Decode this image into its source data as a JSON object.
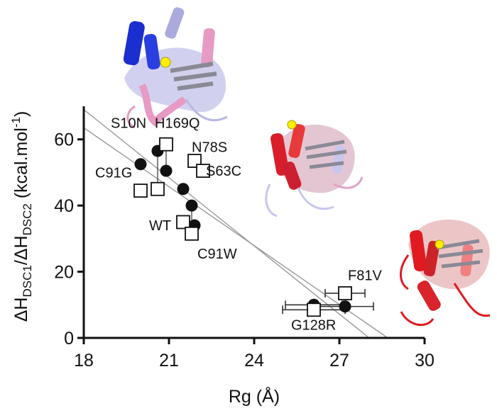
{
  "chart_data": {
    "type": "scatter",
    "xlabel": "Rg (Å)",
    "ylabel": {
      "prefix": "ΔH",
      "sub1": "DSC1",
      "mid": "/ΔH",
      "sub2": "DSC2",
      "unit": " (kcal.mol",
      "sup": "-1",
      "close": ")"
    },
    "xlim": [
      18,
      30
    ],
    "ylim": [
      0,
      70
    ],
    "xticks": [
      18,
      21,
      24,
      27,
      30
    ],
    "yticks": [
      0,
      20,
      40,
      60
    ],
    "series": [
      {
        "marker": "filled-circle",
        "points": [
          {
            "x": 20.0,
            "y": 52.5
          },
          {
            "x": 20.6,
            "y": 56.5
          },
          {
            "x": 20.9,
            "y": 50.5
          },
          {
            "x": 21.5,
            "y": 45.0
          },
          {
            "x": 21.8,
            "y": 40.0
          },
          {
            "x": 21.9,
            "y": 34.0
          },
          {
            "x": 26.1,
            "y": 10.0,
            "xerr": 1.0
          },
          {
            "x": 27.2,
            "y": 9.5,
            "xerr": 1.0
          }
        ]
      },
      {
        "marker": "open-square",
        "points": [
          {
            "x": 20.0,
            "y": 44.5
          },
          {
            "x": 20.6,
            "y": 45.0
          },
          {
            "x": 20.9,
            "y": 58.5
          },
          {
            "x": 21.9,
            "y": 53.5
          },
          {
            "x": 22.2,
            "y": 50.5
          },
          {
            "x": 21.5,
            "y": 35.0
          },
          {
            "x": 21.8,
            "y": 31.5
          },
          {
            "x": 26.1,
            "y": 8.5,
            "xerr": 1.1
          },
          {
            "x": 27.2,
            "y": 13.5,
            "xerr": 0.7
          }
        ]
      }
    ],
    "vlinks": [
      {
        "x": 20.6,
        "y1": 45.0,
        "y2": 56.5
      },
      {
        "x": 20.9,
        "y1": 50.5,
        "y2": 58.5
      },
      {
        "x": 21.8,
        "y1": 31.5,
        "y2": 40.0
      }
    ],
    "fit_lines": [
      {
        "x1": 18,
        "y1": 69,
        "x2": 28.05,
        "y2": 0
      },
      {
        "x1": 18,
        "y1": 63.5,
        "x2": 28.7,
        "y2": 0
      }
    ],
    "annotations": [
      {
        "text": "S10N",
        "x": 18.95,
        "y": 63.5
      },
      {
        "text": "H169Q",
        "x": 20.5,
        "y": 63.5
      },
      {
        "text": "N78S",
        "x": 21.8,
        "y": 56.2
      },
      {
        "text": "S63C",
        "x": 22.3,
        "y": 49.0
      },
      {
        "text": "C91G",
        "x": 18.4,
        "y": 48.5
      },
      {
        "text": "WT",
        "x": 20.3,
        "y": 32.5
      },
      {
        "text": "C91W",
        "x": 22.0,
        "y": 24.0
      },
      {
        "text": "F81V",
        "x": 27.3,
        "y": 17.5
      },
      {
        "text": "G128R",
        "x": 25.3,
        "y": 2.5
      }
    ],
    "colors": {
      "ink": "#111111",
      "fit_line": "#9a9a9a",
      "errorbar": "#333333"
    }
  },
  "images": {
    "structure_top_label": "protein-structure-blue-pink",
    "structure_mid_label": "protein-structure-red-lavender",
    "structure_right_label": "protein-structure-red"
  }
}
